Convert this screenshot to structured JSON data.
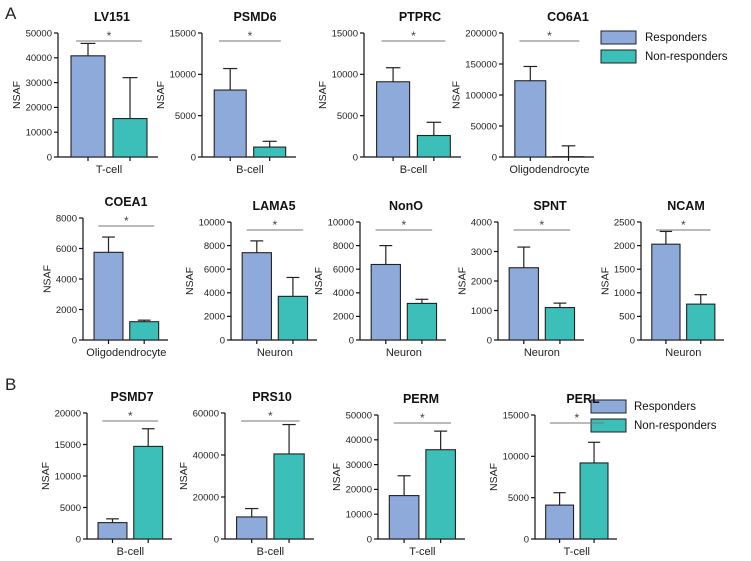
{
  "colors": {
    "responders": "#8eaadb",
    "non_responders": "#3cbfb8",
    "bar_edge": "#222222"
  },
  "panels": [
    {
      "label": "A",
      "legend": {
        "position": "top-right",
        "entries": [
          "Responders",
          "Non-responders"
        ]
      }
    },
    {
      "label": "B",
      "legend": {
        "position": "top-right",
        "entries": [
          "Responders",
          "Non-responders"
        ]
      }
    }
  ],
  "chart_data": [
    {
      "type": "bar",
      "panel": "A",
      "title": "LV151",
      "ylabel": "NSAF",
      "category": "T-cell",
      "ylim": [
        0,
        50000
      ],
      "yticks": [
        "0",
        "10000",
        "20000",
        "30000",
        "40000",
        "50000"
      ],
      "series": [
        {
          "name": "Responders",
          "value": 40800,
          "error": 5000
        },
        {
          "name": "Non-responders",
          "value": 15500,
          "error": 16500
        }
      ],
      "annotation": "*"
    },
    {
      "type": "bar",
      "panel": "A",
      "title": "PSMD6",
      "ylabel": "NSAF",
      "category": "B-cell",
      "ylim": [
        0,
        15000
      ],
      "yticks": [
        "0",
        "5000",
        "10000",
        "15000"
      ],
      "series": [
        {
          "name": "Responders",
          "value": 8100,
          "error": 2600
        },
        {
          "name": "Non-responders",
          "value": 1200,
          "error": 700
        }
      ],
      "annotation": "*"
    },
    {
      "type": "bar",
      "panel": "A",
      "title": "PTPRC",
      "ylabel": "NSAF",
      "category": "B-cell",
      "ylim": [
        0,
        15000
      ],
      "yticks": [
        "0",
        "5000",
        "10000",
        "15000"
      ],
      "series": [
        {
          "name": "Responders",
          "value": 9100,
          "error": 1700
        },
        {
          "name": "Non-responders",
          "value": 2600,
          "error": 1600
        }
      ],
      "annotation": "*"
    },
    {
      "type": "bar",
      "panel": "A",
      "title": "CO6A1",
      "ylabel": "NSAF",
      "category": "Oligodendrocyte",
      "ylim": [
        0,
        200000
      ],
      "yticks": [
        "0",
        "50000",
        "100000",
        "150000",
        "200000"
      ],
      "series": [
        {
          "name": "Responders",
          "value": 123000,
          "error": 23000
        },
        {
          "name": "Non-responders",
          "value": 500,
          "error": 17500
        }
      ],
      "annotation": "*"
    },
    {
      "type": "bar",
      "panel": "A",
      "title": "COEA1",
      "ylabel": "NSAF",
      "category": "Oligodendrocyte",
      "ylim": [
        0,
        8000
      ],
      "yticks": [
        "0",
        "2000",
        "4000",
        "6000",
        "8000"
      ],
      "series": [
        {
          "name": "Responders",
          "value": 5750,
          "error": 1000
        },
        {
          "name": "Non-responders",
          "value": 1200,
          "error": 100
        }
      ],
      "annotation": "*"
    },
    {
      "type": "bar",
      "panel": "A",
      "title": "LAMA5",
      "ylabel": "NSAF",
      "category": "Neuron",
      "ylim": [
        0,
        10000
      ],
      "yticks": [
        "0",
        "2000",
        "4000",
        "6000",
        "8000",
        "10000"
      ],
      "series": [
        {
          "name": "Responders",
          "value": 7400,
          "error": 1000
        },
        {
          "name": "Non-responders",
          "value": 3700,
          "error": 1600
        }
      ],
      "annotation": "*"
    },
    {
      "type": "bar",
      "panel": "A",
      "title": "NonO",
      "ylabel": "NSAF",
      "category": "Neuron",
      "ylim": [
        0,
        10000
      ],
      "yticks": [
        "0",
        "2000",
        "4000",
        "6000",
        "8000",
        "10000"
      ],
      "series": [
        {
          "name": "Responders",
          "value": 6400,
          "error": 1600
        },
        {
          "name": "Non-responders",
          "value": 3100,
          "error": 350
        }
      ],
      "annotation": "*"
    },
    {
      "type": "bar",
      "panel": "A",
      "title": "SPNT",
      "ylabel": "NSAF",
      "category": "Neuron",
      "ylim": [
        0,
        4000
      ],
      "yticks": [
        "0",
        "1000",
        "2000",
        "3000",
        "4000"
      ],
      "series": [
        {
          "name": "Responders",
          "value": 2450,
          "error": 700
        },
        {
          "name": "Non-responders",
          "value": 1100,
          "error": 150
        }
      ],
      "annotation": "*"
    },
    {
      "type": "bar",
      "panel": "A",
      "title": "NCAM",
      "ylabel": "NSAF",
      "category": "Neuron",
      "ylim": [
        0,
        2500
      ],
      "yticks": [
        "0",
        "500",
        "1000",
        "1500",
        "2000",
        "2500"
      ],
      "series": [
        {
          "name": "Responders",
          "value": 2030,
          "error": 270
        },
        {
          "name": "Non-responders",
          "value": 760,
          "error": 200
        }
      ],
      "annotation": "*"
    },
    {
      "type": "bar",
      "panel": "B",
      "title": "PSMD7",
      "ylabel": "NSAF",
      "category": "B-cell",
      "ylim": [
        0,
        20000
      ],
      "yticks": [
        "0",
        "5000",
        "10000",
        "15000",
        "20000"
      ],
      "series": [
        {
          "name": "Responders",
          "value": 2600,
          "error": 600
        },
        {
          "name": "Non-responders",
          "value": 14700,
          "error": 2800
        }
      ],
      "annotation": "*"
    },
    {
      "type": "bar",
      "panel": "B",
      "title": "PRS10",
      "ylabel": "NSAF",
      "category": "B-cell",
      "ylim": [
        0,
        60000
      ],
      "yticks": [
        "0",
        "20000",
        "40000",
        "60000"
      ],
      "series": [
        {
          "name": "Responders",
          "value": 10500,
          "error": 4000
        },
        {
          "name": "Non-responders",
          "value": 40500,
          "error": 14000
        }
      ],
      "annotation": "*"
    },
    {
      "type": "bar",
      "panel": "B",
      "title": "PERM",
      "ylabel": "NSAF",
      "category": "T-cell",
      "ylim": [
        0,
        50000
      ],
      "yticks": [
        "0",
        "10000",
        "20000",
        "30000",
        "40000",
        "50000"
      ],
      "series": [
        {
          "name": "Responders",
          "value": 17500,
          "error": 8000
        },
        {
          "name": "Non-responders",
          "value": 36000,
          "error": 7500
        }
      ],
      "annotation": "*"
    },
    {
      "type": "bar",
      "panel": "B",
      "title": "PERL",
      "ylabel": "NSAF",
      "category": "T-cell",
      "ylim": [
        0,
        15000
      ],
      "yticks": [
        "0",
        "5000",
        "10000",
        "15000"
      ],
      "series": [
        {
          "name": "Responders",
          "value": 4100,
          "error": 1500
        },
        {
          "name": "Non-responders",
          "value": 9200,
          "error": 2500
        }
      ],
      "annotation": "*"
    }
  ]
}
